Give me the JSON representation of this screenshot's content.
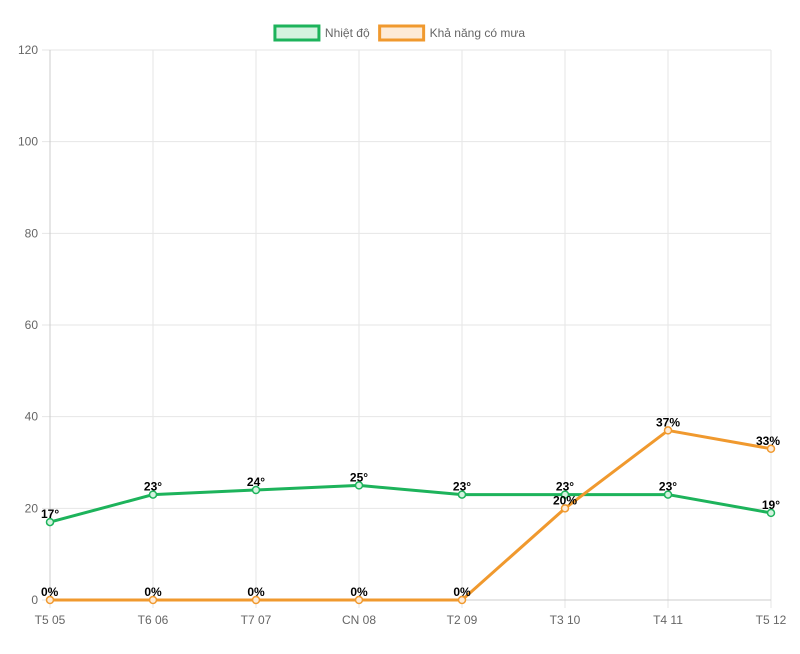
{
  "chart_data": {
    "type": "line",
    "categories": [
      "T5 05",
      "T6 06",
      "T7 07",
      "CN 08",
      "T2 09",
      "T3 10",
      "T4 11",
      "T5 12"
    ],
    "series": [
      {
        "name": "Nhiệt độ",
        "values": [
          17,
          23,
          24,
          25,
          23,
          23,
          23,
          19
        ],
        "labels": [
          "17°",
          "23°",
          "24°",
          "25°",
          "23°",
          "23°",
          "23°",
          "19°"
        ],
        "color": "#1db35b",
        "fill": "#d4f2df"
      },
      {
        "name": "Khả năng có mưa",
        "values": [
          0,
          0,
          0,
          0,
          0,
          20,
          37,
          33
        ],
        "labels": [
          "0%",
          "0%",
          "0%",
          "0%",
          "0%",
          "20%",
          "37%",
          "33%"
        ],
        "color": "#f0992e",
        "fill": "#fdebd7"
      }
    ],
    "ylim": [
      0,
      120
    ],
    "yticks": [
      0,
      20,
      40,
      60,
      80,
      100,
      120
    ],
    "grid": true,
    "legend_position": "top-center"
  }
}
